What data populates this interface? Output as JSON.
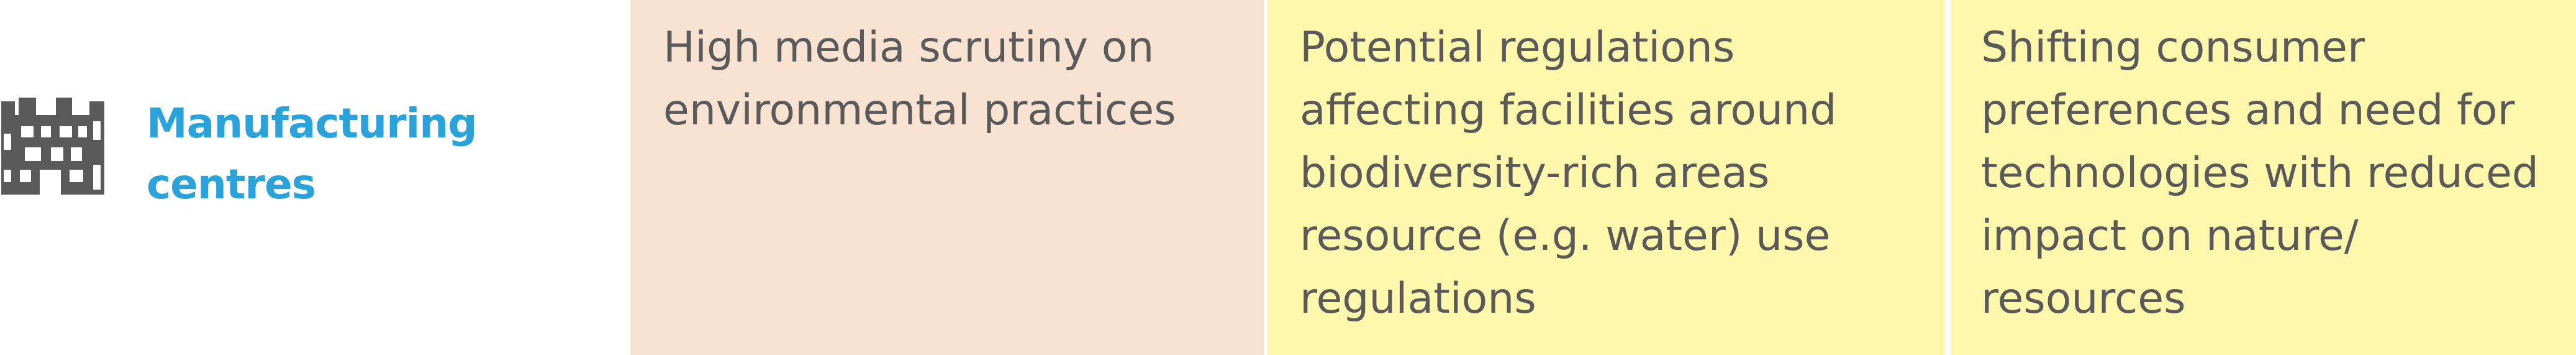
{
  "row": {
    "label": "Manufacturing centres",
    "icon": "factory-icon",
    "cells": [
      {
        "text": "High media scrutiny on environmental practices"
      },
      {
        "text": "Potential regulations affecting facilities around biodiversity-rich areas resource (e.g. water) use regulations"
      },
      {
        "text": "Shifting consumer preferences and need for technologies with reduced impact on nature/ resources"
      }
    ]
  },
  "colors": {
    "label": "#2aa3db",
    "icon": "#5a5a5a",
    "media_cell": "#f8e2d2",
    "regulation_cell": "#fff8ac",
    "consumer_cell": "#fff8ac",
    "body_text": "#5a5a5a"
  }
}
